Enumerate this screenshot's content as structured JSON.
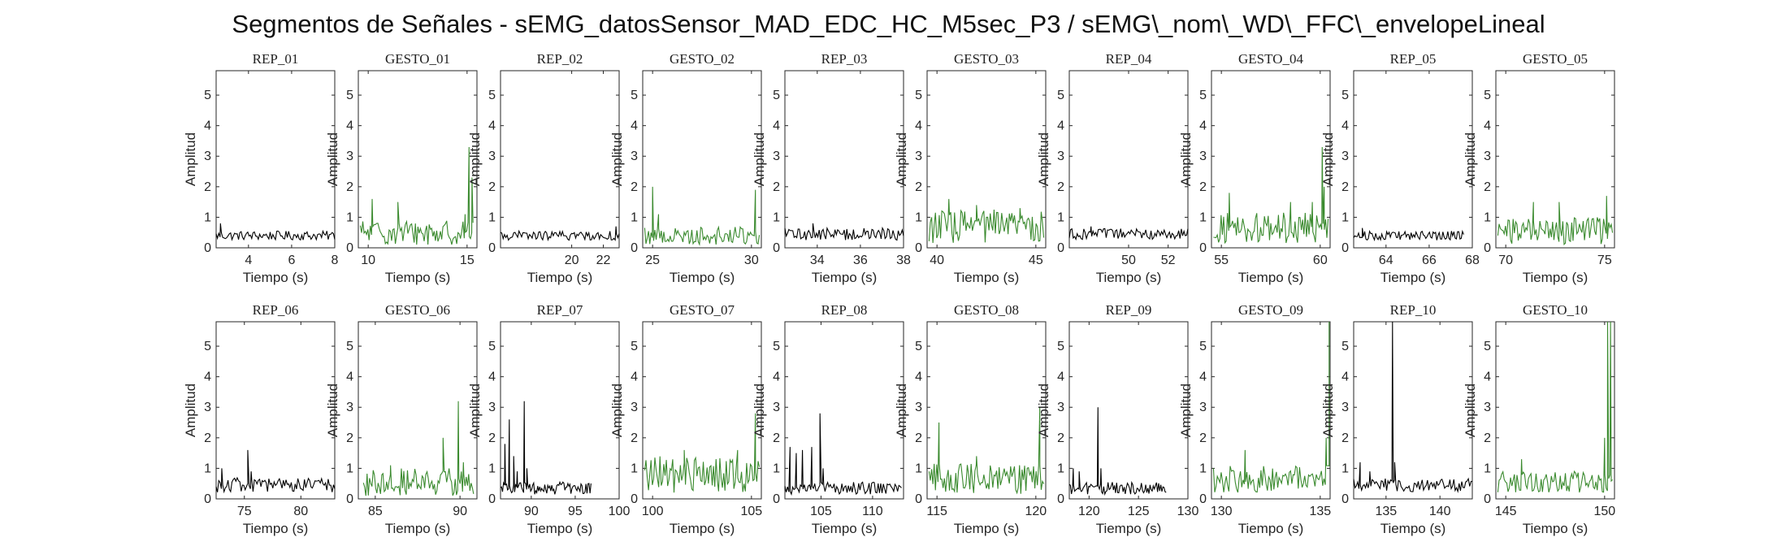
{
  "figure": {
    "title": "Segmentos de Señales - sEMG_datosSensor_MAD_EDC_HC_M5sec_P3 / sEMG\\_nom\\_WD\\_FFC\\_envelopeLineal"
  },
  "colors": {
    "rep": "#000000",
    "gesto": "#3a8a2e",
    "axis": "#262626"
  },
  "chart_data": [
    {
      "type": "line",
      "title": "REP_01",
      "xlabel": "Tiempo (s)",
      "ylabel": "Amplitud",
      "xlim": [
        2.5,
        8
      ],
      "ylim": [
        0,
        5.8
      ],
      "xticks": [
        4,
        6,
        8
      ],
      "yticks": [
        0,
        1,
        2,
        3,
        4,
        5
      ],
      "color": "#000000",
      "x_range": [
        2.5,
        8
      ],
      "trace_type": "rep",
      "base": 0.4,
      "noise": 0.15,
      "spikes": [
        {
          "x": 2.7,
          "y": 0.8
        }
      ]
    },
    {
      "type": "line",
      "title": "GESTO_01",
      "xlabel": "Tiempo (s)",
      "ylabel": "Amplitud",
      "xlim": [
        9.5,
        15.5
      ],
      "ylim": [
        0,
        5.8
      ],
      "xticks": [
        10,
        15
      ],
      "yticks": [
        0,
        1,
        2,
        3,
        4,
        5
      ],
      "color": "#3a8a2e",
      "x_range": [
        9.6,
        15.3
      ],
      "trace_type": "gesto",
      "base": 0.5,
      "noise": 0.4,
      "spikes": [
        {
          "x": 10.2,
          "y": 1.6
        },
        {
          "x": 11.5,
          "y": 1.5
        },
        {
          "x": 14.9,
          "y": 1.1
        },
        {
          "x": 15.1,
          "y": 3.3
        },
        {
          "x": 15.25,
          "y": 2.3
        }
      ]
    },
    {
      "type": "line",
      "title": "REP_02",
      "xlabel": "Tiempo (s)",
      "ylabel": "Amplitud",
      "xlim": [
        15.5,
        23
      ],
      "ylim": [
        0,
        5.8
      ],
      "xticks": [
        20,
        22
      ],
      "yticks": [
        0,
        1,
        2,
        3,
        4,
        5
      ],
      "color": "#000000",
      "x_range": [
        15.5,
        23
      ],
      "trace_type": "rep",
      "base": 0.4,
      "noise": 0.15,
      "spikes": [
        {
          "x": 22.8,
          "y": 0.7
        }
      ]
    },
    {
      "type": "line",
      "title": "GESTO_02",
      "xlabel": "Tiempo (s)",
      "ylabel": "Amplitud",
      "xlim": [
        24.5,
        30.5
      ],
      "ylim": [
        0,
        5.8
      ],
      "xticks": [
        25,
        30
      ],
      "yticks": [
        0,
        1,
        2,
        3,
        4,
        5
      ],
      "color": "#3a8a2e",
      "x_range": [
        24.6,
        30.4
      ],
      "trace_type": "gesto",
      "base": 0.4,
      "noise": 0.3,
      "spikes": [
        {
          "x": 25.0,
          "y": 2.0
        },
        {
          "x": 25.3,
          "y": 1.1
        },
        {
          "x": 30.2,
          "y": 1.9
        }
      ]
    },
    {
      "type": "line",
      "title": "REP_03",
      "xlabel": "Tiempo (s)",
      "ylabel": "Amplitud",
      "xlim": [
        32.5,
        38
      ],
      "ylim": [
        0,
        5.8
      ],
      "xticks": [
        34,
        36,
        38
      ],
      "yticks": [
        0,
        1,
        2,
        3,
        4,
        5
      ],
      "color": "#000000",
      "x_range": [
        32.5,
        38
      ],
      "trace_type": "rep",
      "base": 0.45,
      "noise": 0.2,
      "spikes": [
        {
          "x": 33.8,
          "y": 0.8
        }
      ]
    },
    {
      "type": "line",
      "title": "GESTO_03",
      "xlabel": "Tiempo (s)",
      "ylabel": "Amplitud",
      "xlim": [
        39.5,
        45.5
      ],
      "ylim": [
        0,
        5.8
      ],
      "xticks": [
        40,
        45
      ],
      "yticks": [
        0,
        1,
        2,
        3,
        4,
        5
      ],
      "color": "#3a8a2e",
      "x_range": [
        39.6,
        45.4
      ],
      "trace_type": "gesto",
      "base": 0.7,
      "noise": 0.55,
      "spikes": [
        {
          "x": 40.6,
          "y": 1.6
        },
        {
          "x": 42.0,
          "y": 1.4
        },
        {
          "x": 44.2,
          "y": 1.3
        }
      ]
    },
    {
      "type": "line",
      "title": "REP_04",
      "xlabel": "Tiempo (s)",
      "ylabel": "Amplitud",
      "xlim": [
        47,
        53
      ],
      "ylim": [
        0,
        5.8
      ],
      "xticks": [
        50,
        52
      ],
      "yticks": [
        0,
        1,
        2,
        3,
        4,
        5
      ],
      "color": "#000000",
      "x_range": [
        47,
        53
      ],
      "trace_type": "rep",
      "base": 0.45,
      "noise": 0.18,
      "spikes": [
        {
          "x": 48.1,
          "y": 0.7
        }
      ]
    },
    {
      "type": "line",
      "title": "GESTO_04",
      "xlabel": "Tiempo (s)",
      "ylabel": "Amplitud",
      "xlim": [
        54.5,
        60.5
      ],
      "ylim": [
        0,
        5.8
      ],
      "xticks": [
        55,
        60
      ],
      "yticks": [
        0,
        1,
        2,
        3,
        4,
        5
      ],
      "color": "#3a8a2e",
      "x_range": [
        54.6,
        60.4
      ],
      "trace_type": "gesto",
      "base": 0.65,
      "noise": 0.5,
      "spikes": [
        {
          "x": 55.4,
          "y": 1.8
        },
        {
          "x": 58.5,
          "y": 1.5
        },
        {
          "x": 59.6,
          "y": 1.5
        },
        {
          "x": 60.1,
          "y": 3.3
        },
        {
          "x": 60.2,
          "y": 2.0
        }
      ]
    },
    {
      "type": "line",
      "title": "REP_05",
      "xlabel": "Tiempo (s)",
      "ylabel": "Amplitud",
      "xlim": [
        62.5,
        68
      ],
      "ylim": [
        0,
        5.8
      ],
      "xticks": [
        64,
        66,
        68
      ],
      "yticks": [
        0,
        1,
        2,
        3,
        4,
        5
      ],
      "color": "#000000",
      "x_range": [
        62.5,
        67.6
      ],
      "trace_type": "rep",
      "base": 0.4,
      "noise": 0.15,
      "spikes": [
        {
          "x": 62.9,
          "y": 0.65
        }
      ]
    },
    {
      "type": "line",
      "title": "GESTO_05",
      "xlabel": "Tiempo (s)",
      "ylabel": "Amplitud",
      "xlim": [
        69.5,
        75.5
      ],
      "ylim": [
        0,
        5.8
      ],
      "xticks": [
        70,
        75
      ],
      "yticks": [
        0,
        1,
        2,
        3,
        4,
        5
      ],
      "color": "#3a8a2e",
      "x_range": [
        69.6,
        75.4
      ],
      "trace_type": "gesto",
      "base": 0.55,
      "noise": 0.45,
      "spikes": [
        {
          "x": 71.4,
          "y": 1.5
        },
        {
          "x": 72.7,
          "y": 1.5
        },
        {
          "x": 75.1,
          "y": 1.7
        }
      ]
    },
    {
      "type": "line",
      "title": "REP_06",
      "xlabel": "Tiempo (s)",
      "ylabel": "Amplitud",
      "xlim": [
        72.5,
        83
      ],
      "ylim": [
        0,
        5.8
      ],
      "xticks": [
        75,
        80
      ],
      "yticks": [
        0,
        1,
        2,
        3,
        4,
        5
      ],
      "color": "#000000",
      "x_range": [
        72.5,
        83
      ],
      "trace_type": "rep",
      "base": 0.45,
      "noise": 0.25,
      "spikes": [
        {
          "x": 73.0,
          "y": 1.0
        },
        {
          "x": 75.3,
          "y": 1.6
        },
        {
          "x": 75.6,
          "y": 0.9
        }
      ]
    },
    {
      "type": "line",
      "title": "GESTO_06",
      "xlabel": "Tiempo (s)",
      "ylabel": "Amplitud",
      "xlim": [
        84,
        91
      ],
      "ylim": [
        0,
        5.8
      ],
      "xticks": [
        85,
        90
      ],
      "yticks": [
        0,
        1,
        2,
        3,
        4,
        5
      ],
      "color": "#3a8a2e",
      "x_range": [
        84.3,
        90.8
      ],
      "trace_type": "gesto",
      "base": 0.55,
      "noise": 0.45,
      "spikes": [
        {
          "x": 85.9,
          "y": 1.1
        },
        {
          "x": 89.0,
          "y": 2.0
        },
        {
          "x": 89.9,
          "y": 3.2
        },
        {
          "x": 90.2,
          "y": 1.2
        }
      ]
    },
    {
      "type": "line",
      "title": "REP_07",
      "xlabel": "Tiempo (s)",
      "ylabel": "Amplitud",
      "xlim": [
        86.5,
        100
      ],
      "ylim": [
        0,
        5.8
      ],
      "xticks": [
        90,
        95,
        100
      ],
      "yticks": [
        0,
        1,
        2,
        3,
        4,
        5
      ],
      "color": "#000000",
      "x_range": [
        86.5,
        96.8
      ],
      "trace_type": "rep",
      "base": 0.35,
      "noise": 0.2,
      "spikes": [
        {
          "x": 87.0,
          "y": 1.8
        },
        {
          "x": 87.5,
          "y": 2.6
        },
        {
          "x": 88.0,
          "y": 1.4
        },
        {
          "x": 88.4,
          "y": 0.9
        },
        {
          "x": 89.2,
          "y": 3.2
        },
        {
          "x": 89.5,
          "y": 1.0
        }
      ]
    },
    {
      "type": "line",
      "title": "GESTO_07",
      "xlabel": "Tiempo (s)",
      "ylabel": "Amplitud",
      "xlim": [
        99.5,
        105.5
      ],
      "ylim": [
        0,
        5.8
      ],
      "xticks": [
        100,
        105
      ],
      "yticks": [
        0,
        1,
        2,
        3,
        4,
        5
      ],
      "color": "#3a8a2e",
      "x_range": [
        99.6,
        105.4
      ],
      "trace_type": "gesto",
      "base": 0.8,
      "noise": 0.6,
      "spikes": [
        {
          "x": 101.6,
          "y": 1.6
        },
        {
          "x": 104.3,
          "y": 1.6
        },
        {
          "x": 105.2,
          "y": 2.8
        }
      ]
    },
    {
      "type": "line",
      "title": "REP_08",
      "xlabel": "Tiempo (s)",
      "ylabel": "Amplitud",
      "xlim": [
        101.5,
        113
      ],
      "ylim": [
        0,
        5.8
      ],
      "xticks": [
        105,
        110
      ],
      "yticks": [
        0,
        1,
        2,
        3,
        4,
        5
      ],
      "color": "#000000",
      "x_range": [
        101.5,
        112.8
      ],
      "trace_type": "rep",
      "base": 0.35,
      "noise": 0.2,
      "spikes": [
        {
          "x": 102.0,
          "y": 1.7
        },
        {
          "x": 102.6,
          "y": 1.5
        },
        {
          "x": 103.2,
          "y": 1.6
        },
        {
          "x": 104.1,
          "y": 1.7
        },
        {
          "x": 104.9,
          "y": 2.8
        },
        {
          "x": 105.2,
          "y": 1.0
        }
      ]
    },
    {
      "type": "line",
      "title": "GESTO_08",
      "xlabel": "Tiempo (s)",
      "ylabel": "Amplitud",
      "xlim": [
        114.5,
        120.5
      ],
      "ylim": [
        0,
        5.8
      ],
      "xticks": [
        115,
        120
      ],
      "yticks": [
        0,
        1,
        2,
        3,
        4,
        5
      ],
      "color": "#3a8a2e",
      "x_range": [
        114.6,
        120.4
      ],
      "trace_type": "gesto",
      "base": 0.65,
      "noise": 0.5,
      "spikes": [
        {
          "x": 115.1,
          "y": 2.5
        },
        {
          "x": 117.0,
          "y": 1.4
        },
        {
          "x": 120.2,
          "y": 3.0
        }
      ]
    },
    {
      "type": "line",
      "title": "REP_09",
      "xlabel": "Tiempo (s)",
      "ylabel": "Amplitud",
      "xlim": [
        118,
        130
      ],
      "ylim": [
        0,
        5.8
      ],
      "xticks": [
        120,
        125,
        130
      ],
      "yticks": [
        0,
        1,
        2,
        3,
        4,
        5
      ],
      "color": "#000000",
      "x_range": [
        118,
        127.8
      ],
      "trace_type": "rep",
      "base": 0.35,
      "noise": 0.2,
      "spikes": [
        {
          "x": 118.4,
          "y": 1.0
        },
        {
          "x": 119.0,
          "y": 0.9
        },
        {
          "x": 120.9,
          "y": 3.0
        },
        {
          "x": 121.2,
          "y": 1.0
        }
      ]
    },
    {
      "type": "line",
      "title": "GESTO_09",
      "xlabel": "Tiempo (s)",
      "ylabel": "Amplitud",
      "xlim": [
        129.5,
        135.5
      ],
      "ylim": [
        0,
        5.8
      ],
      "xticks": [
        130,
        135
      ],
      "yticks": [
        0,
        1,
        2,
        3,
        4,
        5
      ],
      "color": "#3a8a2e",
      "x_range": [
        129.6,
        135.45
      ],
      "trace_type": "gesto",
      "base": 0.65,
      "noise": 0.45,
      "spikes": [
        {
          "x": 131.2,
          "y": 1.6
        },
        {
          "x": 135.3,
          "y": 2.0
        },
        {
          "x": 135.45,
          "y": 5.8
        }
      ]
    },
    {
      "type": "line",
      "title": "REP_10",
      "xlabel": "Tiempo (s)",
      "ylabel": "Amplitud",
      "xlim": [
        132,
        143
      ],
      "ylim": [
        0,
        5.8
      ],
      "xticks": [
        135,
        140
      ],
      "yticks": [
        0,
        1,
        2,
        3,
        4,
        5
      ],
      "color": "#000000",
      "x_range": [
        132,
        143
      ],
      "trace_type": "rep",
      "base": 0.45,
      "noise": 0.22,
      "spikes": [
        {
          "x": 132.6,
          "y": 1.2
        },
        {
          "x": 133.5,
          "y": 0.9
        },
        {
          "x": 135.6,
          "y": 5.8
        },
        {
          "x": 135.8,
          "y": 1.2
        }
      ]
    },
    {
      "type": "line",
      "title": "GESTO_10",
      "xlabel": "Tiempo (s)",
      "ylabel": "Amplitud",
      "xlim": [
        144.5,
        150.5
      ],
      "ylim": [
        0,
        5.8
      ],
      "xticks": [
        145,
        150
      ],
      "yticks": [
        0,
        1,
        2,
        3,
        4,
        5
      ],
      "color": "#3a8a2e",
      "x_range": [
        144.6,
        150.4
      ],
      "trace_type": "gesto",
      "base": 0.55,
      "noise": 0.35,
      "spikes": [
        {
          "x": 145.8,
          "y": 1.3
        },
        {
          "x": 150.0,
          "y": 2.0
        },
        {
          "x": 150.15,
          "y": 5.8
        },
        {
          "x": 150.3,
          "y": 5.8
        }
      ]
    }
  ]
}
